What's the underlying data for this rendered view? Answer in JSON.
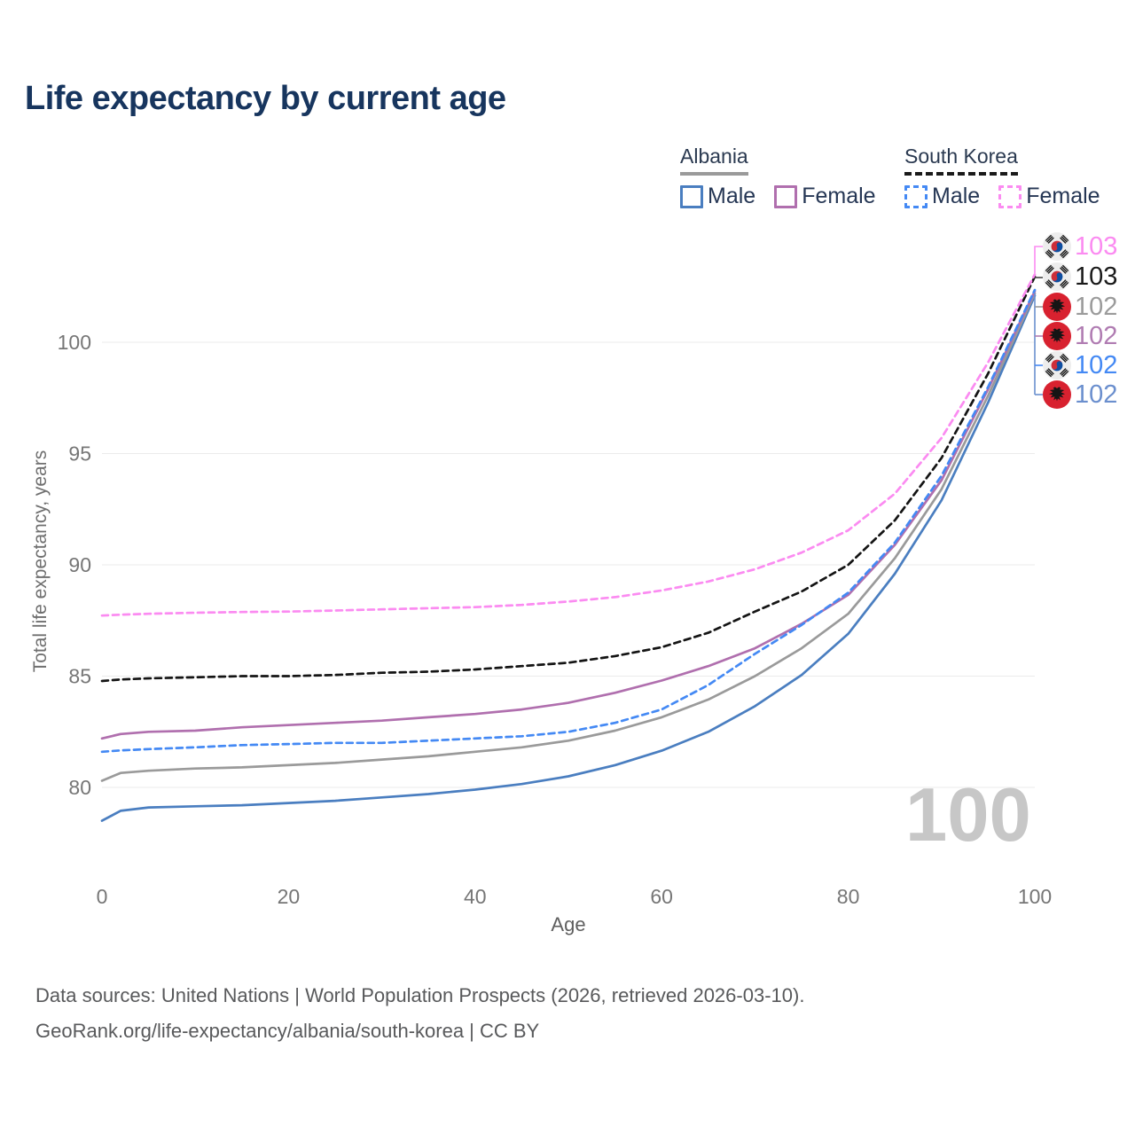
{
  "title": "Life expectancy by current age",
  "legend": {
    "groups": [
      {
        "label": "Albania",
        "line_style": "solid",
        "line_color": "#9a9a9a",
        "items": [
          {
            "label": "Male",
            "color": "#4a7ec0",
            "dash": "solid"
          },
          {
            "label": "Female",
            "color": "#b06fae",
            "dash": "solid"
          }
        ]
      },
      {
        "label": "South Korea",
        "line_style": "dashed",
        "line_color": "#1a1a1a",
        "items": [
          {
            "label": "Male",
            "color": "#4489f4",
            "dash": "dashed"
          },
          {
            "label": "Female",
            "color": "#fb8bf1",
            "dash": "dashed"
          }
        ]
      }
    ]
  },
  "watermark": "100",
  "end_labels": [
    {
      "value": "103",
      "color": "#fb8bf1",
      "flag": "kr"
    },
    {
      "value": "103",
      "color": "#1a1a1a",
      "flag": "kr"
    },
    {
      "value": "102",
      "color": "#9b9b9b",
      "flag": "al"
    },
    {
      "value": "102",
      "color": "#b07cb2",
      "flag": "al"
    },
    {
      "value": "102",
      "color": "#4489f4",
      "flag": "kr"
    },
    {
      "value": "102",
      "color": "#6b8fce",
      "flag": "al"
    }
  ],
  "chart_data": {
    "type": "line",
    "title": "Life expectancy by current age",
    "xlabel": "Age",
    "ylabel": "Total life expectancy, years",
    "x_ticks": [
      0,
      20,
      40,
      60,
      80,
      100
    ],
    "y_ticks": [
      80,
      85,
      90,
      95,
      100
    ],
    "xlim": [
      0,
      100
    ],
    "ylim": [
      77.5,
      103.6
    ],
    "grid": "horizontal",
    "legend_position": "top-right",
    "x": [
      0,
      2,
      5,
      10,
      15,
      20,
      25,
      30,
      35,
      40,
      45,
      50,
      55,
      60,
      65,
      70,
      75,
      80,
      85,
      90,
      95,
      100
    ],
    "series": [
      {
        "name": "Albania Male",
        "country": "Albania",
        "sex": "Male",
        "color": "#4a7ec0",
        "dashed": false,
        "end_label": "102",
        "values": [
          78.5,
          78.95,
          79.1,
          79.15,
          79.2,
          79.3,
          79.4,
          79.55,
          79.7,
          79.9,
          80.15,
          80.5,
          81.0,
          81.65,
          82.5,
          83.65,
          85.05,
          86.9,
          89.6,
          92.9,
          97.3,
          102.1
        ]
      },
      {
        "name": "Albania Total",
        "country": "Albania",
        "sex": "Total",
        "color": "#9a9a9a",
        "dashed": false,
        "end_label": "102",
        "values": [
          80.3,
          80.65,
          80.75,
          80.85,
          80.9,
          81.0,
          81.1,
          81.25,
          81.4,
          81.6,
          81.8,
          82.1,
          82.55,
          83.15,
          83.95,
          85.0,
          86.25,
          87.8,
          90.3,
          93.4,
          97.6,
          102.2
        ]
      },
      {
        "name": "Albania Female",
        "country": "Albania",
        "sex": "Female",
        "color": "#b06fae",
        "dashed": false,
        "end_label": "102",
        "values": [
          82.2,
          82.4,
          82.5,
          82.55,
          82.7,
          82.8,
          82.9,
          83.0,
          83.15,
          83.3,
          83.5,
          83.8,
          84.25,
          84.8,
          85.45,
          86.25,
          87.35,
          88.65,
          90.9,
          93.8,
          97.9,
          102.3
        ]
      },
      {
        "name": "South Korea Male",
        "country": "South Korea",
        "sex": "Male",
        "color": "#4489f4",
        "dashed": true,
        "end_label": "102",
        "values": [
          81.6,
          81.66,
          81.72,
          81.8,
          81.9,
          81.95,
          82.0,
          82.0,
          82.1,
          82.2,
          82.3,
          82.5,
          82.9,
          83.5,
          84.6,
          86.0,
          87.3,
          88.75,
          91.0,
          94.0,
          98.0,
          102.35
        ]
      },
      {
        "name": "South Korea Total",
        "country": "South Korea",
        "sex": "Total",
        "color": "#141414",
        "dashed": true,
        "end_label": "103",
        "values": [
          84.78,
          84.85,
          84.9,
          84.95,
          85.0,
          85.0,
          85.05,
          85.15,
          85.2,
          85.3,
          85.45,
          85.6,
          85.9,
          86.3,
          86.95,
          87.9,
          88.8,
          90.0,
          92.0,
          94.8,
          98.6,
          102.95
        ]
      },
      {
        "name": "South Korea Female",
        "country": "South Korea",
        "sex": "Female",
        "color": "#fb8bf1",
        "dashed": true,
        "end_label": "103",
        "values": [
          87.72,
          87.76,
          87.8,
          87.85,
          87.88,
          87.9,
          87.95,
          88.0,
          88.05,
          88.1,
          88.2,
          88.35,
          88.55,
          88.85,
          89.25,
          89.8,
          90.55,
          91.55,
          93.2,
          95.7,
          99.1,
          103.05
        ]
      }
    ]
  },
  "footer": {
    "line1": "Data sources: United Nations | World Population Prospects (2026, retrieved 2026-03-10).",
    "line2": "GeoRank.org/life-expectancy/albania/south-korea | CC BY"
  }
}
